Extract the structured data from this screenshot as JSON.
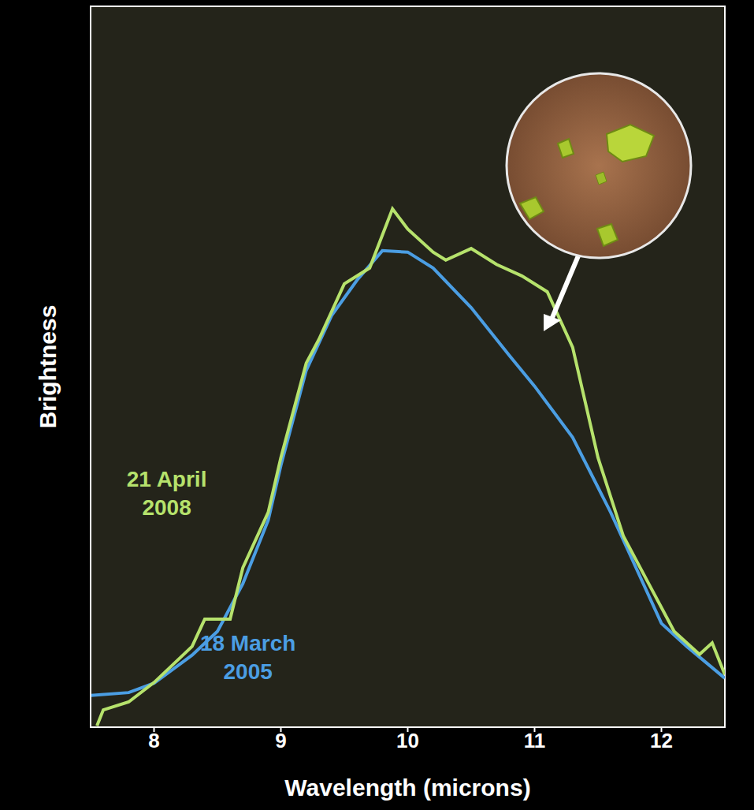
{
  "chart_data": {
    "type": "line",
    "x_label": "Wavelength (microns)",
    "y_label": "Brightness",
    "xlim": [
      7.5,
      12.5
    ],
    "xticks": [
      8,
      9,
      10,
      11,
      12
    ],
    "ylim": [
      0,
      100
    ],
    "tick_labels": "x",
    "grid": false,
    "series": [
      {
        "name": "18 March 2005",
        "color": "#4b9ee3",
        "x": [
          7.5,
          7.8,
          8.0,
          8.3,
          8.5,
          8.7,
          8.9,
          9.0,
          9.2,
          9.4,
          9.6,
          9.8,
          10.0,
          10.2,
          10.5,
          10.8,
          11.0,
          11.3,
          11.6,
          11.8,
          12.0,
          12.2,
          12.5
        ],
        "values": [
          4.4,
          4.8,
          6.1,
          10,
          13.3,
          19.9,
          28.7,
          36.3,
          49.5,
          57.1,
          62,
          66.1,
          65.9,
          63.7,
          58.2,
          51.6,
          47.3,
          40.2,
          29.8,
          22.1,
          14.4,
          11.2,
          6.8
        ]
      },
      {
        "name": "21 April 2008",
        "color": "#b6e26c",
        "x": [
          7.55,
          7.6,
          7.8,
          8.0,
          8.3,
          8.4,
          8.6,
          8.7,
          8.9,
          9.0,
          9.2,
          9.3,
          9.5,
          9.7,
          9.88,
          10.0,
          10.2,
          10.3,
          10.5,
          10.7,
          10.9,
          11.1,
          11.3,
          11.5,
          11.7,
          11.9,
          12.1,
          12.3,
          12.4,
          12.5
        ],
        "values": [
          0.2,
          2.4,
          3.5,
          6.2,
          11.2,
          15,
          15,
          22.1,
          29.8,
          37.4,
          50.5,
          53.8,
          61.5,
          63.7,
          71.9,
          69.1,
          65.9,
          64.8,
          66.4,
          64.2,
          62.6,
          60.4,
          52.7,
          37.4,
          26.5,
          19.9,
          13.3,
          10.1,
          11.7,
          7.3
        ]
      }
    ],
    "annotations": [
      {
        "series": "21 April 2008",
        "x": 8.1,
        "y": 33.4
      },
      {
        "series": "18 March 2005",
        "x": 8.74,
        "y": 10.6
      }
    ]
  }
}
